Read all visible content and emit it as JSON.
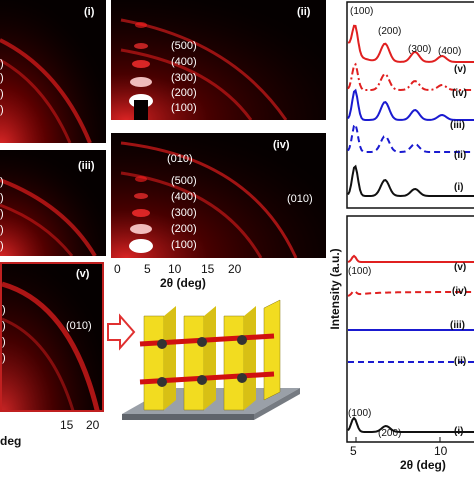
{
  "panels": {
    "i": {
      "label": "(i)"
    },
    "ii": {
      "label": "(ii)",
      "orders": [
        "(500)",
        "(400)",
        "(300)",
        "(200)",
        "(100)"
      ]
    },
    "iii": {
      "label": "(iii)"
    },
    "iv": {
      "label": "(iv)",
      "orders": [
        "(010)",
        "(500)",
        "(400)",
        "(300)",
        "(200)",
        "(100)"
      ],
      "side": "(010)"
    },
    "v": {
      "label": "(v)",
      "side": "(010)"
    }
  },
  "gixd_axis": {
    "ticks": [
      "0",
      "5",
      "10",
      "15",
      "20"
    ],
    "xlabel": "2θ (deg)",
    "left_xlabel": "deg",
    "left_ticks": [
      "20",
      "15"
    ]
  },
  "chart_data": [
    {
      "type": "line",
      "panel": "top",
      "peak_labels": [
        "(100)",
        "(200)",
        "(300)",
        "(400)"
      ],
      "series": [
        {
          "name": "(v)",
          "color": "#e02020",
          "style": "solid"
        },
        {
          "name": "(iv)",
          "color": "#e02020",
          "style": "dashdot"
        },
        {
          "name": "(iii)",
          "color": "#1a1ad0",
          "style": "solid"
        },
        {
          "name": "(ii)",
          "color": "#1a1ad0",
          "style": "dashed"
        },
        {
          "name": "(i)",
          "color": "#111111",
          "style": "solid"
        }
      ]
    },
    {
      "type": "line",
      "panel": "bottom",
      "ylabel": "Intensity (a.u.)",
      "xlabel": "2θ (deg)",
      "x_ticks": [
        "5",
        "10"
      ],
      "peak_labels": [
        "(100)",
        "(100)",
        "(200)"
      ],
      "series": [
        {
          "name": "(v)",
          "color": "#e02020",
          "style": "solid"
        },
        {
          "name": "(iv)",
          "color": "#e02020",
          "style": "dashed"
        },
        {
          "name": "(iii)",
          "color": "#1a1ad0",
          "style": "solid"
        },
        {
          "name": "(ii)",
          "color": "#1a1ad0",
          "style": "dashed"
        },
        {
          "name": "(i)",
          "color": "#111111",
          "style": "solid"
        }
      ]
    }
  ],
  "colors": {
    "ring": "#ff2020",
    "arrow": "#e03030",
    "panel_bg": "#050000"
  }
}
